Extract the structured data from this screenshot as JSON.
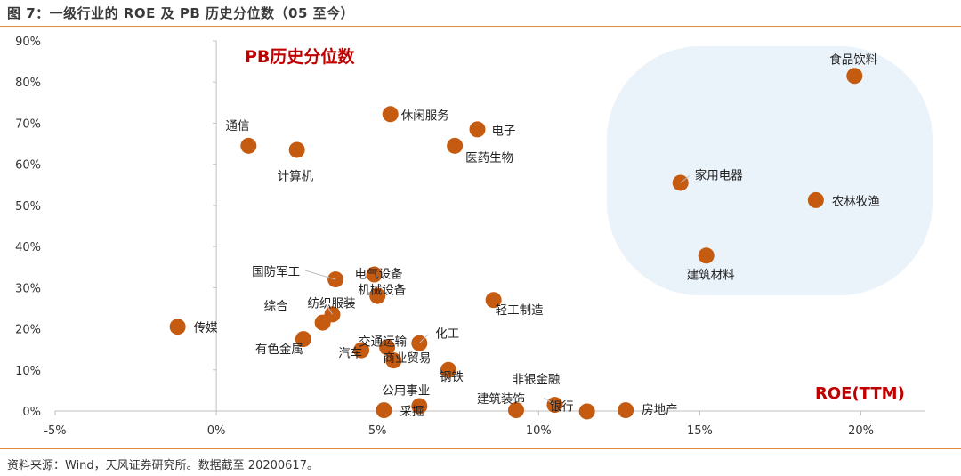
{
  "figure": {
    "title": "图 7：一级行业的 ROE 及 PB 历史分位数（05 至今）",
    "source": "资料来源：Wind，天风证券研究所。数据截至 20200617。"
  },
  "colors": {
    "point": "#C55A11",
    "rule": "#E08A3C",
    "highlight": "#EAF2FA",
    "annotation": "#C00000"
  },
  "chart_data": {
    "type": "scatter",
    "xlim": [
      -0.05,
      0.22
    ],
    "ylim": [
      0,
      0.9
    ],
    "x_ticks": [
      {
        "value": -0.05,
        "label": "-5%"
      },
      {
        "value": 0,
        "label": "0%"
      },
      {
        "value": 0.05,
        "label": "5%"
      },
      {
        "value": 0.1,
        "label": "10%"
      },
      {
        "value": 0.15,
        "label": "15%"
      },
      {
        "value": 0.2,
        "label": "20%"
      }
    ],
    "y_ticks": [
      {
        "value": 0,
        "label": "0%"
      },
      {
        "value": 0.1,
        "label": "10%"
      },
      {
        "value": 0.2,
        "label": "20%"
      },
      {
        "value": 0.3,
        "label": "30%"
      },
      {
        "value": 0.4,
        "label": "40%"
      },
      {
        "value": 0.5,
        "label": "50%"
      },
      {
        "value": 0.6,
        "label": "60%"
      },
      {
        "value": 0.7,
        "label": "70%"
      },
      {
        "value": 0.8,
        "label": "80%"
      },
      {
        "value": 0.9,
        "label": "90%"
      }
    ],
    "y_annotation": "PB历史分位数",
    "x_annotation": "ROE(TTM)",
    "grid": false,
    "highlight_region": "upper-right",
    "points": [
      {
        "name": "食品饮料",
        "x": 0.198,
        "y": 0.815
      },
      {
        "name": "家用电器",
        "x": 0.144,
        "y": 0.555
      },
      {
        "name": "农林牧渔",
        "x": 0.186,
        "y": 0.513
      },
      {
        "name": "建筑材料",
        "x": 0.152,
        "y": 0.378
      },
      {
        "name": "休闲服务",
        "x": 0.054,
        "y": 0.722
      },
      {
        "name": "电子",
        "x": 0.081,
        "y": 0.685
      },
      {
        "name": "医药生物",
        "x": 0.074,
        "y": 0.645
      },
      {
        "name": "通信",
        "x": 0.01,
        "y": 0.645
      },
      {
        "name": "计算机",
        "x": 0.025,
        "y": 0.635
      },
      {
        "name": "国防军工",
        "x": 0.037,
        "y": 0.32
      },
      {
        "name": "电气设备",
        "x": 0.049,
        "y": 0.332
      },
      {
        "name": "机械设备",
        "x": 0.05,
        "y": 0.28
      },
      {
        "name": "轻工制造",
        "x": 0.086,
        "y": 0.27
      },
      {
        "name": "纺织服装",
        "x": 0.036,
        "y": 0.235
      },
      {
        "name": "综合",
        "x": 0.033,
        "y": 0.215
      },
      {
        "name": "传媒",
        "x": -0.012,
        "y": 0.205
      },
      {
        "name": "有色金属",
        "x": 0.027,
        "y": 0.175
      },
      {
        "name": "交通运输",
        "x": 0.053,
        "y": 0.155
      },
      {
        "name": "化工",
        "x": 0.063,
        "y": 0.165
      },
      {
        "name": "汽车",
        "x": 0.045,
        "y": 0.148
      },
      {
        "name": "商业贸易",
        "x": 0.055,
        "y": 0.123
      },
      {
        "name": "钢铁",
        "x": 0.072,
        "y": 0.1
      },
      {
        "name": "公用事业",
        "x": 0.063,
        "y": 0.012
      },
      {
        "name": "采掘",
        "x": 0.052,
        "y": 0.002
      },
      {
        "name": "建筑装饰",
        "x": 0.093,
        "y": 0.002
      },
      {
        "name": "非银金融",
        "x": 0.105,
        "y": 0.015
      },
      {
        "name": "银行",
        "x": 0.115,
        "y": -0.001
      },
      {
        "name": "房地产",
        "x": 0.127,
        "y": 0.002
      }
    ]
  }
}
